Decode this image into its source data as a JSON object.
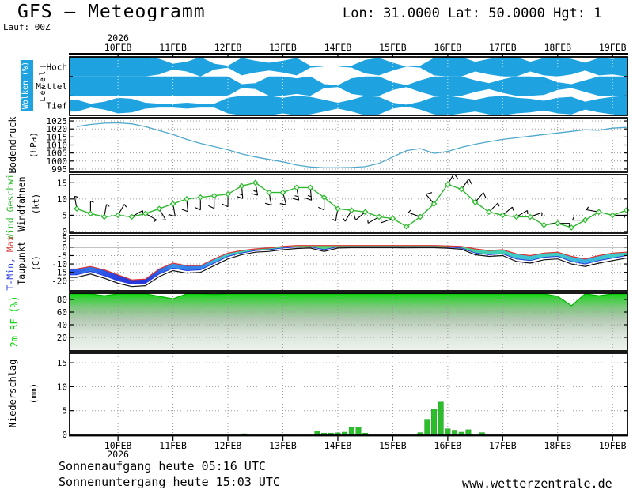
{
  "header": {
    "title": "GFS — Meteogramm",
    "run": "Lauf: 00Z",
    "coordinates": "Lon: 31.0000 Lat: 50.0000 Hgt: 1"
  },
  "footer": {
    "sunrise": "Sonnenaufgang heute 05:16 UTC",
    "sunset": "Sonnenuntergang heute 15:03 UTC",
    "watermark": "www.wetterzentrale.de"
  },
  "chart_data": {
    "type": "meteogram",
    "x_axis": {
      "year_label": "2026",
      "day_labels": [
        "10FEB",
        "11FEB",
        "12FEB",
        "13FEB",
        "14FEB",
        "15FEB",
        "16FEB",
        "17FEB",
        "18FEB",
        "19FEB"
      ]
    },
    "sample_start_day": -0.75,
    "sample_step_days": 0.25,
    "panels": {
      "clouds": {
        "label": "Wolken (%)",
        "level_label": "Level",
        "rows": [
          "Hoch",
          "Mittel",
          "Tief"
        ],
        "plot": "area-bands",
        "color": "#1fa3e0",
        "series": {
          "hoch": [
            100,
            100,
            100,
            100,
            100,
            100,
            80,
            30,
            50,
            100,
            30,
            10,
            90,
            60,
            40,
            60,
            90,
            10,
            0,
            0,
            10,
            70,
            90,
            40,
            0,
            10,
            90,
            100,
            100,
            50,
            80,
            100,
            100,
            50,
            90,
            100,
            80,
            40,
            90,
            80,
            100
          ],
          "mittel": [
            100,
            100,
            100,
            100,
            100,
            100,
            100,
            100,
            100,
            100,
            100,
            100,
            20,
            30,
            100,
            100,
            80,
            100,
            20,
            10,
            80,
            100,
            100,
            40,
            10,
            60,
            100,
            100,
            100,
            60,
            30,
            70,
            100,
            100,
            90,
            40,
            20,
            60,
            100,
            100,
            100
          ],
          "tief": [
            60,
            20,
            40,
            80,
            70,
            30,
            20,
            20,
            30,
            20,
            20,
            80,
            100,
            100,
            100,
            80,
            100,
            90,
            60,
            30,
            60,
            100,
            90,
            30,
            10,
            40,
            90,
            100,
            80,
            60,
            90,
            100,
            80,
            70,
            50,
            80,
            90,
            40,
            70,
            90,
            100
          ]
        }
      },
      "pressure": {
        "label": "Bodendruck",
        "unit": "(hPa)",
        "plot": "line",
        "ticks": [
          995,
          1000,
          1005,
          1010,
          1015,
          1020,
          1025
        ],
        "color": "#4fa8cc",
        "values": [
          1021.5,
          1022.8,
          1023.6,
          1023.8,
          1023.2,
          1021.5,
          1019,
          1016.5,
          1013.5,
          1011,
          1009,
          1007,
          1004.5,
          1002.5,
          1001,
          999.5,
          997.5,
          996.3,
          995.8,
          995.8,
          996,
          996.5,
          998.5,
          1002.5,
          1006.5,
          1007.8,
          1004.8,
          1006,
          1008.5,
          1010.5,
          1012,
          1013.5,
          1014.5,
          1015.5,
          1016.5,
          1017.5,
          1018.5,
          1019.5,
          1019.2,
          1020.5,
          1021
        ]
      },
      "wind": {
        "label": "Wind Geschwi.",
        "label2": "Windfahnen",
        "unit": "(kt)",
        "plot": "line+barbs",
        "ticks": [
          0,
          5,
          10,
          15
        ],
        "color": "#2eb82e",
        "speed": [
          7,
          5.5,
          4.5,
          5,
          4.5,
          5.5,
          7,
          8.5,
          10,
          10.5,
          11,
          11.5,
          14,
          15,
          12,
          12,
          13.5,
          13.5,
          10.5,
          7,
          6.5,
          6,
          4.5,
          4,
          1.5,
          4.5,
          8.5,
          14.5,
          13,
          9,
          6,
          5,
          4.5,
          4.5,
          2,
          2.5,
          1.2,
          3.5,
          6,
          5,
          6.5
        ],
        "dir": [
          350,
          0,
          10,
          30,
          60,
          120,
          150,
          170,
          175,
          180,
          180,
          180,
          175,
          170,
          170,
          165,
          170,
          175,
          180,
          190,
          210,
          230,
          240,
          250,
          260,
          290,
          320,
          30,
          35,
          40,
          45,
          50,
          60,
          70,
          80,
          90,
          100,
          270,
          280,
          90,
          80
        ]
      },
      "temperature": {
        "label_min": "T-Min,",
        "label_max": "Max",
        "label2": "Taupunkt",
        "unit": "(C)",
        "plot": "band+line",
        "ticks": [
          -20,
          -15,
          -10,
          -5,
          0,
          5
        ],
        "color_min": "#2a3ce0",
        "color_max": "#e03232",
        "dew_color": "#111111",
        "tmax": [
          -13,
          -11.5,
          -13.5,
          -16.5,
          -19.5,
          -19,
          -13,
          -9.5,
          -11,
          -11,
          -7,
          -3.5,
          -2,
          -1,
          -0.5,
          0.5,
          1,
          1,
          1,
          1,
          1,
          1,
          1,
          1,
          1,
          1,
          1,
          0.8,
          0.5,
          -1,
          -2,
          -1.5,
          -4,
          -5,
          -3.5,
          -3,
          -5.5,
          -7,
          -5,
          -3.5,
          -3
        ],
        "tmin": [
          -16.5,
          -14.5,
          -17,
          -20,
          -22,
          -21.5,
          -16,
          -12.5,
          -14,
          -13.5,
          -9.5,
          -5.5,
          -3.5,
          -2,
          -1.5,
          -0.5,
          0,
          0.2,
          -1.5,
          0.2,
          0.3,
          0.3,
          0.3,
          0.3,
          0.3,
          0.3,
          0.3,
          0,
          -0.5,
          -3.5,
          -4.5,
          -4,
          -7,
          -8,
          -6,
          -5.5,
          -8.5,
          -10,
          -8,
          -6.5,
          -5
        ],
        "dew": [
          -18,
          -16,
          -18.5,
          -21.5,
          -23.5,
          -23,
          -17.5,
          -14,
          -15.5,
          -15,
          -11,
          -7,
          -4.5,
          -3,
          -2.5,
          -1.5,
          -0.8,
          -0.5,
          -2.5,
          -0.5,
          -0.3,
          -0.3,
          -0.3,
          -0.3,
          -0.4,
          -0.3,
          -0.3,
          -0.6,
          -1.2,
          -4.5,
          -5.5,
          -5,
          -8.5,
          -9.5,
          -7.5,
          -7,
          -10,
          -11.5,
          -9.5,
          -8,
          -6.5
        ]
      },
      "humidity": {
        "label": "2m RF (%)",
        "plot": "area",
        "ticks": [
          20,
          40,
          60,
          80
        ],
        "color": "#00d800",
        "values": [
          97,
          92,
          86,
          96,
          98,
          93,
          85,
          81,
          90,
          92,
          88,
          95,
          97,
          99,
          97,
          93,
          96,
          90,
          95,
          97,
          98,
          96,
          95,
          91,
          89,
          96,
          99,
          98,
          99,
          96,
          89,
          95,
          97,
          96,
          94,
          85,
          70,
          91,
          86,
          94,
          93
        ]
      },
      "precip": {
        "label": "Niederschlag",
        "unit": "(mm)",
        "plot": "bar",
        "ticks": [
          0,
          5,
          10,
          15
        ],
        "color": "#2dbe2d",
        "bars": [
          {
            "day": 2.3,
            "mm": 0.15
          },
          {
            "day": 3.625,
            "mm": 0.8
          },
          {
            "day": 3.75,
            "mm": 0.3
          },
          {
            "day": 3.875,
            "mm": 0.3
          },
          {
            "day": 4.0,
            "mm": 0.35
          },
          {
            "day": 4.125,
            "mm": 0.5
          },
          {
            "day": 4.25,
            "mm": 1.5
          },
          {
            "day": 4.375,
            "mm": 1.6
          },
          {
            "day": 4.5,
            "mm": 0.3
          },
          {
            "day": 5.5,
            "mm": 0.4
          },
          {
            "day": 5.625,
            "mm": 3.2
          },
          {
            "day": 5.75,
            "mm": 5.4
          },
          {
            "day": 5.875,
            "mm": 6.8
          },
          {
            "day": 6.0,
            "mm": 1.2
          },
          {
            "day": 6.125,
            "mm": 0.9
          },
          {
            "day": 6.25,
            "mm": 0.5
          },
          {
            "day": 6.375,
            "mm": 1.0
          },
          {
            "day": 6.625,
            "mm": 0.4
          }
        ]
      }
    }
  }
}
